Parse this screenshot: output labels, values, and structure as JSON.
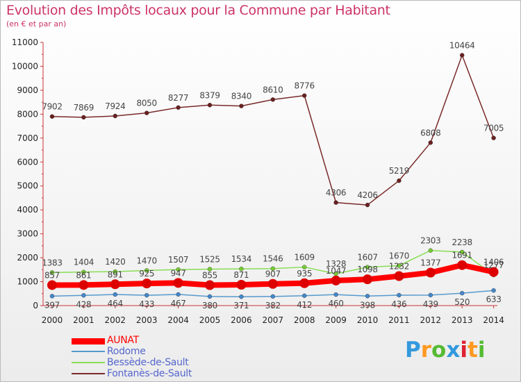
{
  "title": "Evolution des Impôts locaux pour la Commune par Habitant",
  "subtitle": "(en € et par an)",
  "chart_data": {
    "type": "line",
    "title": "Evolution des Impôts locaux pour la Commune par Habitant",
    "ylabel": "(en € et par an)",
    "xlabel": "",
    "ylim": [
      0,
      11000
    ],
    "yticks": [
      0,
      1000,
      2000,
      3000,
      4000,
      5000,
      6000,
      7000,
      8000,
      9000,
      10000,
      11000
    ],
    "categories": [
      "2000",
      "2001",
      "2002",
      "2003",
      "2004",
      "2005",
      "2006",
      "2007",
      "2008",
      "2009",
      "2010",
      "2011",
      "2012",
      "2013",
      "2014"
    ],
    "series": [
      {
        "name": "AUNAT",
        "color": "#ff0000",
        "marker": "#dd0000",
        "width": 8,
        "values": [
          857,
          861,
          891,
          925,
          947,
          855,
          871,
          907,
          935,
          1047,
          1098,
          1232,
          1377,
          1691,
          1406
        ],
        "labels": [
          "857",
          "861",
          "891",
          "925",
          "947",
          "855",
          "871",
          "907",
          "935",
          "1047",
          "1098",
          "1232",
          "1377",
          "1691",
          "1406"
        ]
      },
      {
        "name": "Rodome",
        "color": "#5599cc",
        "marker": "#4488cc",
        "width": 1.5,
        "values": [
          397,
          428,
          464,
          433,
          467,
          380,
          371,
          382,
          412,
          460,
          398,
          436,
          439,
          520,
          633
        ],
        "labels": [
          "397",
          "428",
          "464",
          "433",
          "467",
          "380",
          "371",
          "382",
          "412",
          "460",
          "398",
          "436",
          "439",
          "520",
          "633"
        ]
      },
      {
        "name": "Bessède-de-Sault",
        "color": "#88dd55",
        "marker": "#77cc33",
        "width": 1.5,
        "values": [
          1383,
          1404,
          1420,
          1470,
          1507,
          1525,
          1534,
          1546,
          1609,
          1328,
          1607,
          1670,
          2303,
          2238,
          1277
        ],
        "labels": [
          "1383",
          "1404",
          "1420",
          "1470",
          "1507",
          "1525",
          "1534",
          "1546",
          "1609",
          "1328",
          "1607",
          "1670",
          "2303",
          "2238",
          "1277"
        ]
      },
      {
        "name": "Fontanès-de-Sault",
        "color": "#7a2a2a",
        "marker": "#6b1f1f",
        "width": 1.5,
        "values": [
          7902,
          7869,
          7924,
          8050,
          8277,
          8379,
          8340,
          8610,
          8776,
          4306,
          4206,
          5219,
          6808,
          10464,
          7005
        ],
        "labels": [
          "7902",
          "7869",
          "7924",
          "8050",
          "8277",
          "8379",
          "8340",
          "8610",
          "8776",
          "4306",
          "4206",
          "5219",
          "6808",
          "10464",
          "7005"
        ]
      }
    ],
    "grid": false,
    "legend": "bottom-left"
  },
  "logo": {
    "letters": [
      "P",
      "r",
      "o",
      "x",
      "i",
      "t",
      "i"
    ],
    "colors": [
      "#3399dd",
      "#ff9922",
      "#55bb33",
      "#3399dd",
      "#dd2233",
      "#ff9922",
      "#55bb33"
    ]
  }
}
